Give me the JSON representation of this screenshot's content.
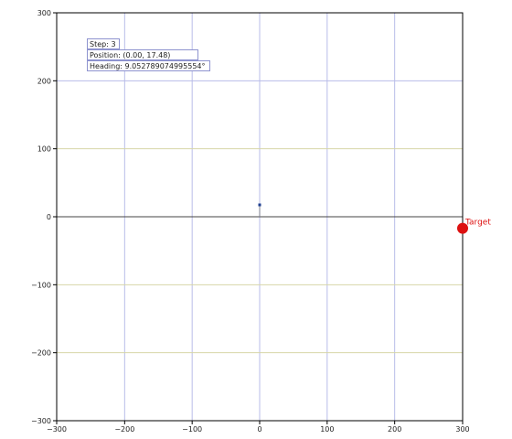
{
  "info": {
    "step": "Step: 3",
    "position": "Position: (0.00, 17.48)",
    "heading": "Heading: 9.052789074995554°"
  },
  "target": {
    "label": "Target",
    "x": 300,
    "y": -17
  },
  "agent": {
    "x": 0,
    "y": 17.48
  },
  "axes": {
    "xlim": [
      -300,
      300
    ],
    "ylim": [
      -300,
      300
    ],
    "x_ticks": [
      "−300",
      "−200",
      "−100",
      "0",
      "100",
      "200",
      "300"
    ],
    "y_ticks": [
      "300",
      "200",
      "100",
      "0",
      "−100",
      "−200",
      "−300"
    ],
    "grid": true
  },
  "colors": {
    "target": "#dd1111",
    "agent": "#1f3f8f",
    "axis": "#000000",
    "grid_x": "#b8bce8",
    "grid_y": "#d7d6a8",
    "info_border": "#8e93cf"
  }
}
